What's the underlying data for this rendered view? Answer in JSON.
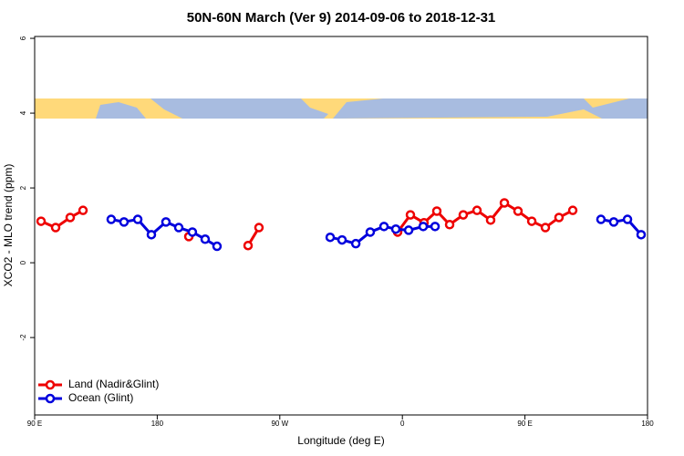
{
  "chart_data": {
    "type": "line",
    "title": "50N-60N March (Ver 9)   2014-09-06 to 2018-12-31",
    "xlabel": "Longitude (deg E)",
    "ylabel": "XCO2 - MLO trend (ppm)",
    "xlim": [
      90,
      540
    ],
    "ylim": [
      -4.07,
      6.05
    ],
    "xticks": [
      {
        "value": 90,
        "label": "90 E"
      },
      180,
      {
        "value": 270,
        "label": "90 W"
      },
      {
        "value": 360,
        "label": "0"
      },
      {
        "value": 450,
        "label": "90 E"
      },
      180
    ],
    "yticks": [
      -2,
      0,
      2,
      4,
      6
    ],
    "legend": "bottom-left",
    "series": [
      {
        "name": "Land (Nadir&Glint)",
        "color": "#ee0000",
        "x": [
          94.7,
          105.4,
          116.1,
          125.5,
          null,
          203.2,
          null,
          246.7,
          254.7,
          null,
          356.5,
          365.9,
          375.9,
          385.3,
          394.7,
          404.7,
          414.8,
          424.8,
          434.9,
          444.9,
          455.0,
          465.0,
          475.0,
          485.1
        ],
        "values": [
          1.11,
          0.94,
          1.21,
          1.4,
          null,
          0.7,
          null,
          0.46,
          0.94,
          null,
          0.82,
          1.28,
          1.07,
          1.38,
          1.02,
          1.28,
          1.4,
          1.14,
          1.6,
          1.38,
          1.11,
          0.94,
          1.21,
          1.4
        ]
      },
      {
        "name": "Ocean (Glint)",
        "color": "#0000dd",
        "x": [
          146.2,
          155.6,
          165.7,
          175.7,
          186.4,
          195.8,
          205.8,
          215.2,
          223.9,
          null,
          307.0,
          315.7,
          325.8,
          336.4,
          346.5,
          355.2,
          364.6,
          375.3,
          384.0,
          null,
          505.8,
          515.2,
          525.3,
          535.3
        ],
        "values": [
          1.16,
          1.09,
          1.16,
          0.75,
          1.09,
          0.94,
          0.82,
          0.63,
          0.44,
          null,
          0.68,
          0.61,
          0.51,
          0.82,
          0.97,
          0.9,
          0.87,
          0.97,
          0.97,
          null,
          1.16,
          1.09,
          1.16,
          0.75
        ]
      }
    ]
  }
}
